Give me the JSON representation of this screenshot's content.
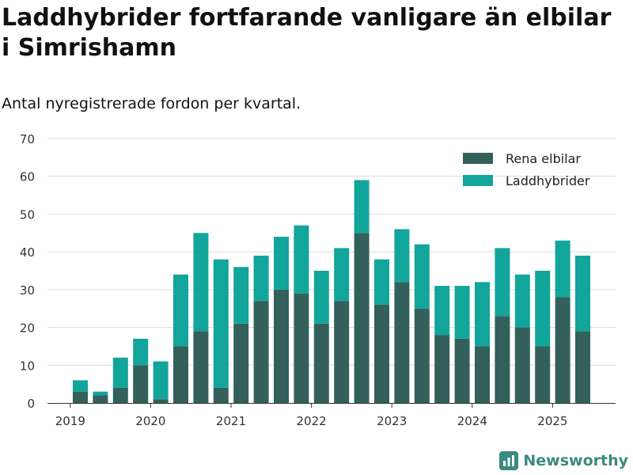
{
  "title": "Laddhybrider fortfarande vanligare än elbilar i Simrishamn",
  "subtitle": "Antal nyregistrerade fordon per kvartal.",
  "brand": "Newsworthy",
  "colors": {
    "elbil": "#33605a",
    "laddhybrid": "#11a59b",
    "grid": "#dddddd",
    "axis": "#333333"
  },
  "chart_data": {
    "type": "bar",
    "stacked": true,
    "title": "Laddhybrider fortfarande vanligare än elbilar i Simrishamn",
    "subtitle": "Antal nyregistrerade fordon per kvartal.",
    "xlabel": "",
    "ylabel": "",
    "ylim": [
      0,
      70
    ],
    "yticks": [
      0,
      10,
      20,
      30,
      40,
      50,
      60,
      70
    ],
    "grid": true,
    "legend_position": "top-right",
    "x_tick_labels": [
      "2019",
      "2020",
      "2021",
      "2022",
      "2023",
      "2024",
      "2025"
    ],
    "categories": [
      "2019 Q1",
      "2019 Q2",
      "2019 Q3",
      "2019 Q4",
      "2020 Q1",
      "2020 Q2",
      "2020 Q3",
      "2020 Q4",
      "2021 Q1",
      "2021 Q2",
      "2021 Q3",
      "2021 Q4",
      "2022 Q1",
      "2022 Q2",
      "2022 Q3",
      "2022 Q4",
      "2023 Q1",
      "2023 Q2",
      "2023 Q3",
      "2023 Q4",
      "2024 Q1",
      "2024 Q2",
      "2024 Q3",
      "2024 Q4",
      "2025 Q1",
      "2025 Q2",
      "2025 Q3"
    ],
    "series": [
      {
        "name": "Rena elbilar",
        "values": [
          3,
          2,
          4,
          10,
          1,
          15,
          19,
          4,
          21,
          27,
          30,
          29,
          21,
          27,
          45,
          26,
          32,
          25,
          18,
          17,
          15,
          23,
          20,
          15,
          28,
          19,
          0
        ]
      },
      {
        "name": "Laddhybrider",
        "values": [
          3,
          1,
          8,
          7,
          10,
          19,
          26,
          34,
          15,
          12,
          14,
          18,
          14,
          14,
          14,
          12,
          14,
          17,
          13,
          14,
          17,
          18,
          14,
          20,
          15,
          20,
          0
        ]
      }
    ]
  }
}
